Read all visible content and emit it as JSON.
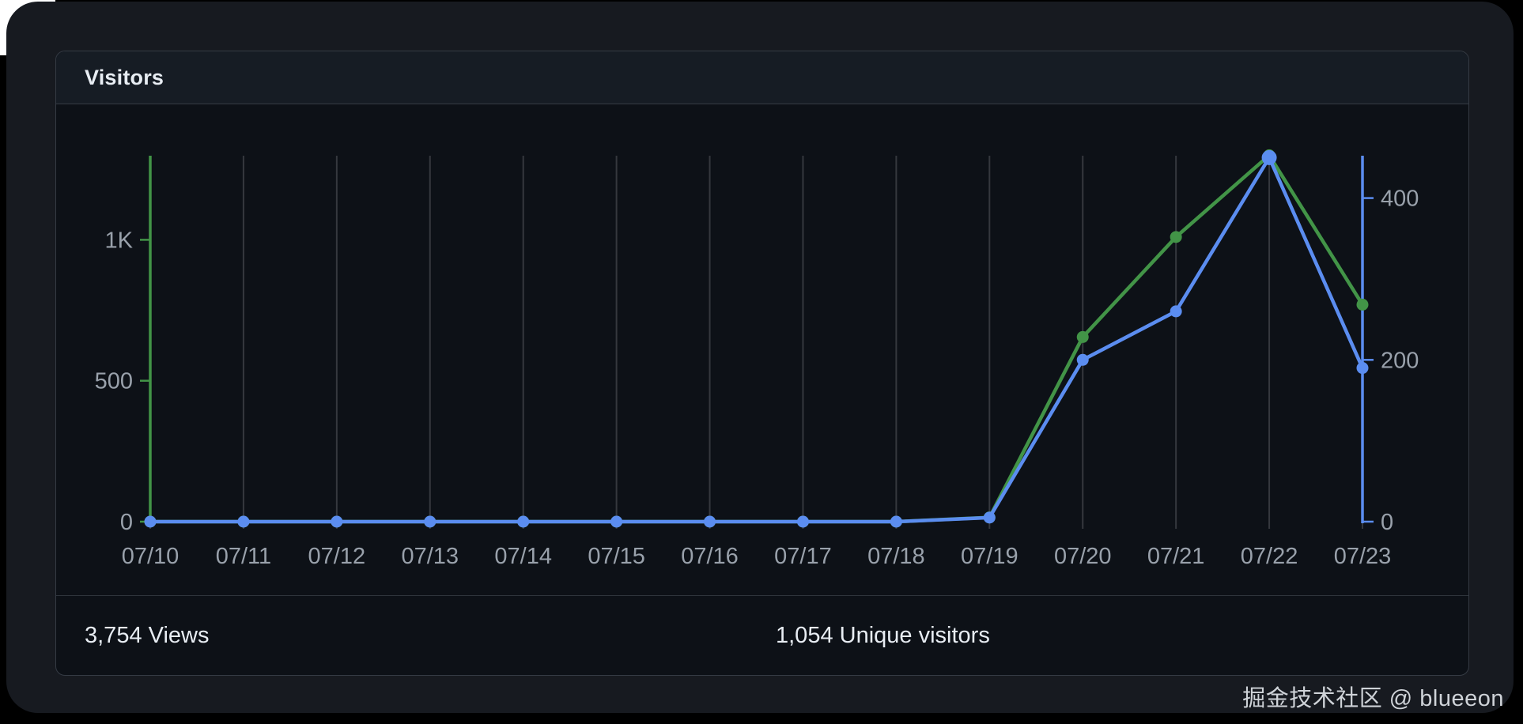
{
  "card": {
    "title": "Visitors"
  },
  "footer": {
    "views": "3,754 Views",
    "unique_visitors": "1,054 Unique visitors"
  },
  "watermark": {
    "text": "掘金技术社区 @ blueeon"
  },
  "chart_data": {
    "type": "line",
    "title": "Visitors",
    "categories": [
      "07/10",
      "07/11",
      "07/12",
      "07/13",
      "07/14",
      "07/15",
      "07/16",
      "07/17",
      "07/18",
      "07/19",
      "07/20",
      "07/21",
      "07/22",
      "07/23"
    ],
    "series": [
      {
        "name": "Views",
        "axis": "left",
        "color": "#429447",
        "values": [
          0,
          0,
          0,
          0,
          0,
          0,
          0,
          0,
          0,
          15,
          655,
          1010,
          1300,
          770
        ]
      },
      {
        "name": "Unique visitors",
        "axis": "right",
        "color": "#5b8df0",
        "values": [
          0,
          0,
          0,
          0,
          0,
          0,
          0,
          0,
          0,
          5,
          200,
          260,
          450,
          190
        ]
      }
    ],
    "y_axis_left": {
      "axis_color": "#429447",
      "tick_labels": [
        "0",
        "500",
        "1K"
      ],
      "tick_values": [
        0,
        500,
        1000
      ],
      "range": [
        0,
        1300
      ]
    },
    "y_axis_right": {
      "axis_color": "#5b8df0",
      "tick_labels": [
        "0",
        "200",
        "400"
      ],
      "tick_values": [
        0,
        200,
        400
      ],
      "range": [
        0,
        453
      ]
    },
    "grid": {
      "vertical_lines": true,
      "horizontal_lines": false,
      "line_color": "#35383e"
    },
    "label_color": "#99a1ab",
    "legend": {
      "shown": false
    }
  }
}
